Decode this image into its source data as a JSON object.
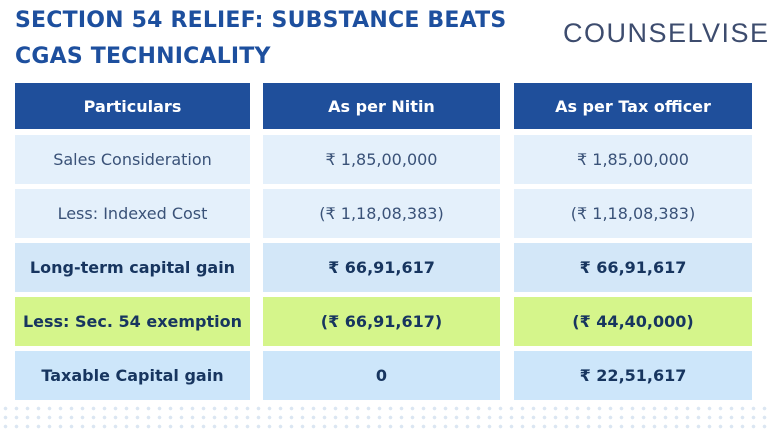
{
  "header": {
    "title_lines": [
      "SECTION 54 RELIEF: SUBSTANCE BEATS",
      "CGAS TECHNICALITY"
    ],
    "logo": "COUNSELVISE"
  },
  "table": {
    "columns": [
      "Particulars",
      "As per Nitin",
      "As per Tax officer"
    ],
    "rows": [
      [
        "Sales Consideration",
        "₹ 1,85,00,000",
        "₹ 1,85,00,000"
      ],
      [
        "Less: Indexed Cost",
        "(₹ 1,18,08,383)",
        "(₹ 1,18,08,383)"
      ],
      [
        "Long-term capital gain",
        "₹ 66,91,617",
        "₹ 66,91,617"
      ],
      [
        "Less: Sec. 54 exemption",
        "(₹ 66,91,617)",
        "(₹ 44,40,000)"
      ],
      [
        "Taxable Capital gain",
        "0",
        "₹ 22,51,617"
      ]
    ]
  }
}
